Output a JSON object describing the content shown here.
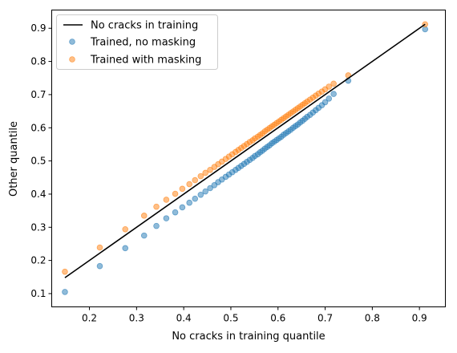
{
  "chart_data": {
    "type": "scatter",
    "title": "",
    "xlabel": "No cracks in training quantile",
    "ylabel": "Other quantile",
    "xlim": [
      0.12,
      0.955
    ],
    "ylim": [
      0.06,
      0.955
    ],
    "xticks": [
      0.2,
      0.3,
      0.4,
      0.5,
      0.6,
      0.7,
      0.8,
      0.9
    ],
    "xtick_labels": [
      "0.2",
      "0.3",
      "0.4",
      "0.5",
      "0.6",
      "0.7",
      "0.8",
      "0.9"
    ],
    "yticks": [
      0.1,
      0.2,
      0.3,
      0.4,
      0.5,
      0.6,
      0.7,
      0.8,
      0.9
    ],
    "ytick_labels": [
      "0.1",
      "0.2",
      "0.3",
      "0.4",
      "0.5",
      "0.6",
      "0.7",
      "0.8",
      "0.9"
    ],
    "grid": false,
    "legend_position": "top-left",
    "series": [
      {
        "name": "No cracks in training",
        "kind": "line",
        "color": "#000000",
        "x": [
          0.148,
          0.912
        ],
        "y": [
          0.148,
          0.912
        ]
      },
      {
        "name": "Trained, no masking",
        "kind": "scatter",
        "color": "#1f77b4",
        "x": [
          0.148,
          0.222,
          0.276,
          0.316,
          0.342,
          0.363,
          0.382,
          0.397,
          0.412,
          0.424,
          0.436,
          0.446,
          0.456,
          0.465,
          0.473,
          0.481,
          0.489,
          0.496,
          0.503,
          0.51,
          0.516,
          0.522,
          0.528,
          0.534,
          0.54,
          0.546,
          0.551,
          0.557,
          0.562,
          0.567,
          0.572,
          0.577,
          0.582,
          0.587,
          0.592,
          0.597,
          0.602,
          0.607,
          0.612,
          0.617,
          0.622,
          0.627,
          0.632,
          0.637,
          0.642,
          0.647,
          0.652,
          0.657,
          0.662,
          0.668,
          0.674,
          0.68,
          0.686,
          0.693,
          0.7,
          0.708,
          0.718,
          0.749,
          0.912
        ],
        "y": [
          0.105,
          0.183,
          0.237,
          0.275,
          0.304,
          0.327,
          0.345,
          0.36,
          0.374,
          0.386,
          0.398,
          0.408,
          0.418,
          0.427,
          0.436,
          0.444,
          0.452,
          0.459,
          0.466,
          0.473,
          0.479,
          0.485,
          0.491,
          0.497,
          0.503,
          0.509,
          0.515,
          0.52,
          0.526,
          0.531,
          0.537,
          0.542,
          0.547,
          0.553,
          0.558,
          0.563,
          0.568,
          0.573,
          0.579,
          0.584,
          0.589,
          0.594,
          0.6,
          0.605,
          0.61,
          0.616,
          0.621,
          0.627,
          0.633,
          0.639,
          0.646,
          0.653,
          0.66,
          0.668,
          0.677,
          0.688,
          0.702,
          0.742,
          0.897
        ]
      },
      {
        "name": "Trained with masking",
        "kind": "scatter",
        "color": "#ff7f0e",
        "x": [
          0.148,
          0.222,
          0.276,
          0.316,
          0.342,
          0.363,
          0.382,
          0.397,
          0.412,
          0.424,
          0.436,
          0.446,
          0.456,
          0.465,
          0.473,
          0.481,
          0.489,
          0.496,
          0.503,
          0.51,
          0.516,
          0.522,
          0.528,
          0.534,
          0.54,
          0.546,
          0.551,
          0.557,
          0.562,
          0.567,
          0.572,
          0.577,
          0.582,
          0.587,
          0.592,
          0.597,
          0.602,
          0.607,
          0.612,
          0.617,
          0.622,
          0.627,
          0.632,
          0.637,
          0.642,
          0.647,
          0.652,
          0.657,
          0.662,
          0.668,
          0.674,
          0.68,
          0.686,
          0.693,
          0.7,
          0.708,
          0.718,
          0.749,
          0.912
        ],
        "y": [
          0.166,
          0.239,
          0.294,
          0.335,
          0.362,
          0.383,
          0.401,
          0.416,
          0.43,
          0.442,
          0.454,
          0.464,
          0.473,
          0.482,
          0.49,
          0.498,
          0.506,
          0.513,
          0.52,
          0.527,
          0.533,
          0.539,
          0.545,
          0.551,
          0.557,
          0.562,
          0.568,
          0.573,
          0.578,
          0.583,
          0.589,
          0.594,
          0.599,
          0.604,
          0.609,
          0.614,
          0.619,
          0.624,
          0.629,
          0.634,
          0.639,
          0.644,
          0.649,
          0.654,
          0.659,
          0.664,
          0.669,
          0.674,
          0.679,
          0.685,
          0.691,
          0.697,
          0.703,
          0.709,
          0.716,
          0.724,
          0.733,
          0.758,
          0.912
        ]
      }
    ]
  }
}
